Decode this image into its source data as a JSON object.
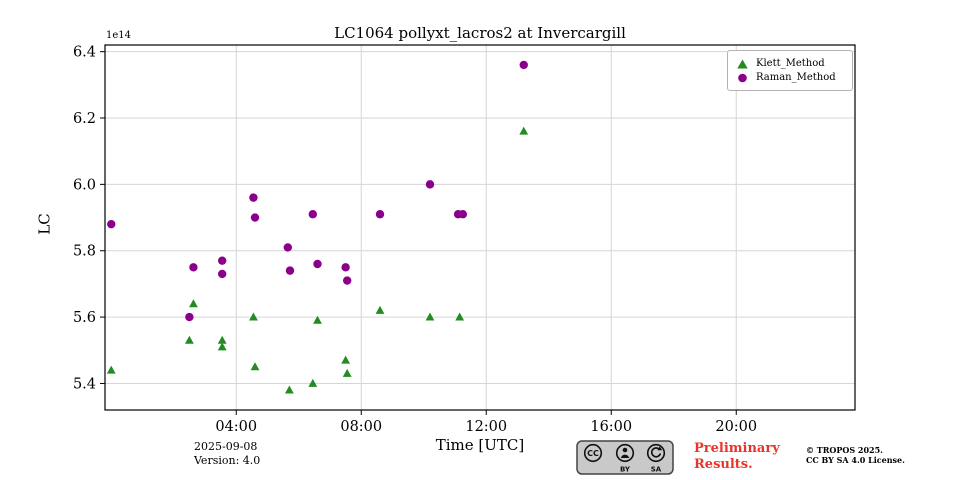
{
  "chart": {
    "title": "LC1064 pollyxt_lacros2 at Invercargill",
    "xlabel": "Time [UTC]",
    "ylabel": "LC",
    "offset_text": "1e14"
  },
  "footer": {
    "date": "2025-09-08",
    "version": "Version: 4.0",
    "preliminary_line1": "Preliminary",
    "preliminary_line2": "Results.",
    "copyright_line1": "© TROPOS 2025.",
    "copyright_line2": "CC BY SA 4.0 License.",
    "cc_badge": {
      "cc": "CC",
      "by": "BY",
      "sa": "SA"
    }
  },
  "chart_data": {
    "type": "scatter",
    "title": "LC1064 pollyxt_lacros2 at Invercargill",
    "xlabel": "Time [UTC]",
    "ylabel": "LC",
    "y_multiplier": "1e14",
    "xlim": [
      -0.2,
      23.8
    ],
    "ylim": [
      5.32,
      6.42
    ],
    "grid": true,
    "legend_position": "upper right",
    "xticks": [
      {
        "v": 4,
        "label": "04:00"
      },
      {
        "v": 8,
        "label": "08:00"
      },
      {
        "v": 12,
        "label": "12:00"
      },
      {
        "v": 16,
        "label": "16:00"
      },
      {
        "v": 20,
        "label": "20:00"
      }
    ],
    "yticks": [
      {
        "v": 5.4,
        "label": "5.4"
      },
      {
        "v": 5.6,
        "label": "5.6"
      },
      {
        "v": 5.8,
        "label": "5.8"
      },
      {
        "v": 6.0,
        "label": "6.0"
      },
      {
        "v": 6.2,
        "label": "6.2"
      },
      {
        "v": 6.4,
        "label": "6.4"
      }
    ],
    "series": [
      {
        "name": "Klett_Method",
        "marker": "triangle",
        "color": "#228B22",
        "points": [
          {
            "x": 0.0,
            "y": 5.44
          },
          {
            "x": 2.5,
            "y": 5.53
          },
          {
            "x": 2.63,
            "y": 5.64
          },
          {
            "x": 3.55,
            "y": 5.53
          },
          {
            "x": 3.55,
            "y": 5.51
          },
          {
            "x": 4.55,
            "y": 5.6
          },
          {
            "x": 4.6,
            "y": 5.45
          },
          {
            "x": 5.7,
            "y": 5.38
          },
          {
            "x": 6.45,
            "y": 5.4
          },
          {
            "x": 6.6,
            "y": 5.59
          },
          {
            "x": 7.5,
            "y": 5.47
          },
          {
            "x": 7.55,
            "y": 5.43
          },
          {
            "x": 8.6,
            "y": 5.62
          },
          {
            "x": 10.2,
            "y": 5.6
          },
          {
            "x": 11.15,
            "y": 5.6
          },
          {
            "x": 13.2,
            "y": 6.16
          }
        ]
      },
      {
        "name": "Raman_Method",
        "marker": "circle",
        "color": "#8B008B",
        "points": [
          {
            "x": 0.0,
            "y": 5.88
          },
          {
            "x": 2.5,
            "y": 5.6
          },
          {
            "x": 2.63,
            "y": 5.75
          },
          {
            "x": 3.55,
            "y": 5.77
          },
          {
            "x": 3.55,
            "y": 5.73
          },
          {
            "x": 4.55,
            "y": 5.96
          },
          {
            "x": 4.6,
            "y": 5.9
          },
          {
            "x": 5.65,
            "y": 5.81
          },
          {
            "x": 5.72,
            "y": 5.74
          },
          {
            "x": 6.45,
            "y": 5.91
          },
          {
            "x": 6.6,
            "y": 5.76
          },
          {
            "x": 7.5,
            "y": 5.75
          },
          {
            "x": 7.55,
            "y": 5.71
          },
          {
            "x": 8.6,
            "y": 5.91
          },
          {
            "x": 10.2,
            "y": 6.0
          },
          {
            "x": 11.1,
            "y": 5.91
          },
          {
            "x": 11.25,
            "y": 5.91
          },
          {
            "x": 13.2,
            "y": 6.36
          }
        ]
      }
    ]
  }
}
